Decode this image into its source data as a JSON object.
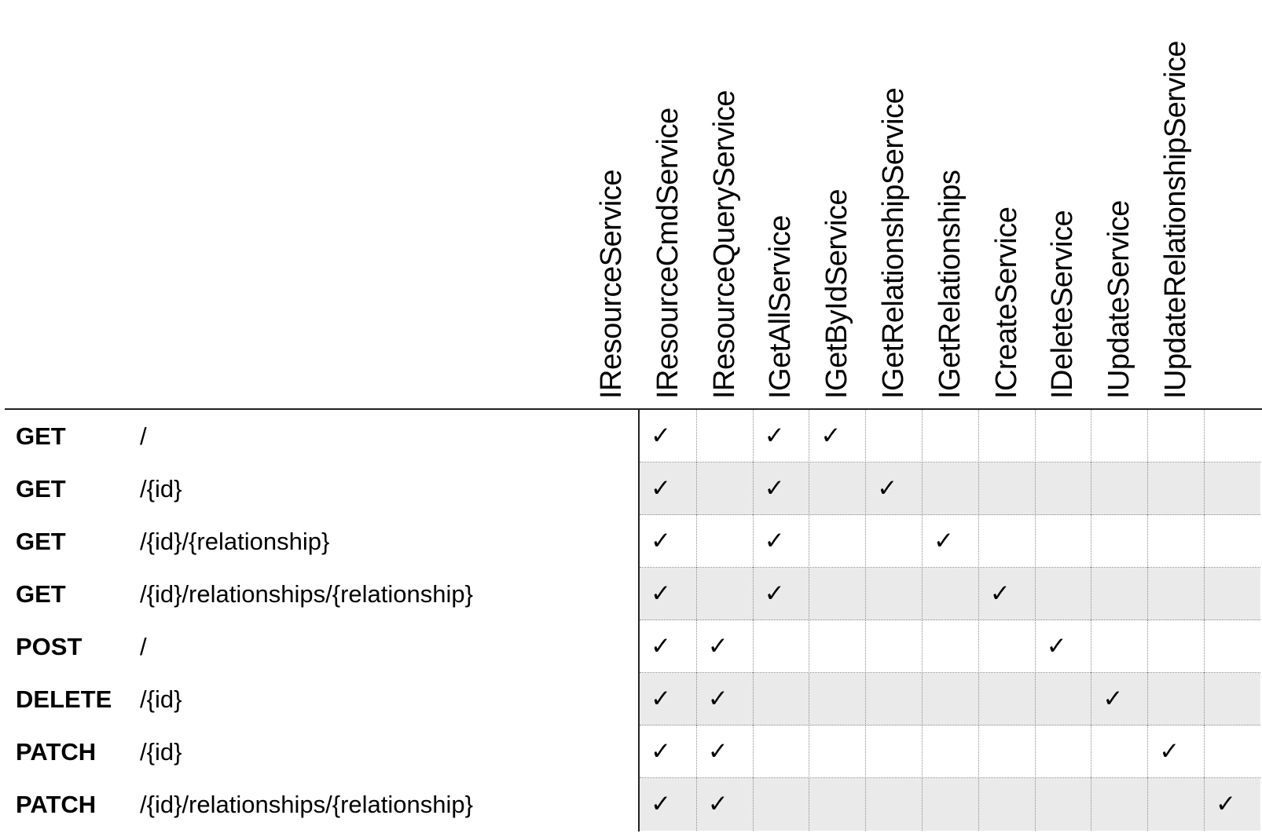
{
  "columns": [
    "IResourceService",
    "IResourceCmdService",
    "IResourceQueryService",
    "IGetAllService",
    "IGetByIdService",
    "IGetRelationshipService",
    "IGetRelationships",
    "ICreateService",
    "IDeleteService",
    "IUpdateService",
    "IUpdateRelationshipService"
  ],
  "check_glyph": "✓",
  "rows": [
    {
      "method": "GET",
      "path": "/",
      "checks": [
        true,
        false,
        true,
        true,
        false,
        false,
        false,
        false,
        false,
        false,
        false
      ]
    },
    {
      "method": "GET",
      "path": "/{id}",
      "checks": [
        true,
        false,
        true,
        false,
        true,
        false,
        false,
        false,
        false,
        false,
        false
      ]
    },
    {
      "method": "GET",
      "path": "/{id}/{relationship}",
      "checks": [
        true,
        false,
        true,
        false,
        false,
        true,
        false,
        false,
        false,
        false,
        false
      ]
    },
    {
      "method": "GET",
      "path": "/{id}/relationships/{relationship}",
      "checks": [
        true,
        false,
        true,
        false,
        false,
        false,
        true,
        false,
        false,
        false,
        false
      ]
    },
    {
      "method": "POST",
      "path": "/",
      "checks": [
        true,
        true,
        false,
        false,
        false,
        false,
        false,
        true,
        false,
        false,
        false
      ]
    },
    {
      "method": "DELETE",
      "path": "/{id}",
      "checks": [
        true,
        true,
        false,
        false,
        false,
        false,
        false,
        false,
        true,
        false,
        false
      ]
    },
    {
      "method": "PATCH",
      "path": "/{id}",
      "checks": [
        true,
        true,
        false,
        false,
        false,
        false,
        false,
        false,
        false,
        true,
        false
      ]
    },
    {
      "method": "PATCH",
      "path": "/{id}/relationships/{relationship}",
      "checks": [
        true,
        true,
        false,
        false,
        false,
        false,
        false,
        false,
        false,
        false,
        true
      ]
    }
  ],
  "colors": {
    "shaded_row": "#eaeaea",
    "grid_line": "#8d8d8d",
    "rule": "#222222"
  }
}
